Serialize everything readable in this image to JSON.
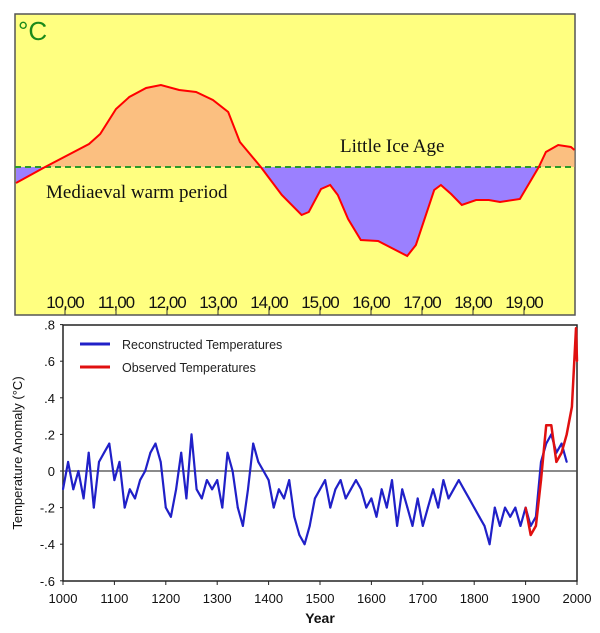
{
  "chart_data": [
    {
      "type": "area",
      "unit_label": "°C",
      "annotations": [
        "Little Ice Age",
        "Mediaeval warm period"
      ],
      "x_tick_labels": [
        "10,00",
        "11,00",
        "12,00",
        "13,00",
        "14,00",
        "15,00",
        "16,00",
        "17,00",
        "18,00",
        "19,00"
      ],
      "x_ticks": [
        1000,
        1100,
        1200,
        1300,
        1400,
        1500,
        1600,
        1700,
        1800,
        1900
      ],
      "xlim": [
        902,
        1992
      ],
      "ylim": [
        -1.0,
        1.5
      ],
      "baseline": 0,
      "y_unlabeled": true,
      "x": [
        904,
        961,
        1047,
        1069,
        1100,
        1126,
        1159,
        1188,
        1224,
        1257,
        1290,
        1320,
        1343,
        1384,
        1425,
        1464,
        1478,
        1502,
        1520,
        1535,
        1555,
        1580,
        1614,
        1671,
        1688,
        1724,
        1737,
        1757,
        1778,
        1806,
        1831,
        1853,
        1892,
        1929,
        1943,
        1967,
        1992,
        1999
      ],
      "y": [
        -0.16,
        0,
        0.23,
        0.33,
        0.58,
        0.7,
        0.79,
        0.82,
        0.77,
        0.75,
        0.67,
        0.55,
        0.25,
        0,
        -0.28,
        -0.48,
        -0.45,
        -0.22,
        -0.18,
        -0.28,
        -0.52,
        -0.73,
        -0.74,
        -0.89,
        -0.78,
        -0.23,
        -0.18,
        -0.27,
        -0.38,
        -0.33,
        -0.33,
        -0.35,
        -0.32,
        0,
        0.15,
        0.22,
        0.2,
        0.17
      ],
      "colors": {
        "background": "#ffff80",
        "warm_fill": "#fbbf80",
        "cold_fill": "#9b80ff",
        "line": "#ff0000",
        "baseline": "#2a9a2a",
        "unit": "#1a8a1a"
      }
    },
    {
      "type": "line",
      "ylabel": "Temperature Anomaly (°C)",
      "xlabel": "Year",
      "xlim": [
        1000,
        2000
      ],
      "ylim": [
        -0.6,
        0.8
      ],
      "x_tick_labels": [
        "1000",
        "1100",
        "1200",
        "1300",
        "1400",
        "1500",
        "1600",
        "1700",
        "1800",
        "1900",
        "2000"
      ],
      "y_ticks": [
        -0.6,
        -0.4,
        -0.2,
        0,
        0.2,
        0.4,
        0.6,
        0.8
      ],
      "y_tick_labels": [
        "-.6",
        "-.4",
        "-.2",
        "0",
        ".2",
        ".4",
        ".6",
        ".8"
      ],
      "legend_position": "top-left",
      "series": [
        {
          "name": "Reconstructed Temperatures",
          "color": "#2020c8",
          "x": [
            1000,
            1010,
            1020,
            1030,
            1040,
            1050,
            1060,
            1070,
            1080,
            1090,
            1100,
            1110,
            1120,
            1130,
            1140,
            1150,
            1160,
            1170,
            1180,
            1190,
            1200,
            1210,
            1220,
            1230,
            1240,
            1250,
            1260,
            1270,
            1280,
            1290,
            1300,
            1310,
            1320,
            1330,
            1340,
            1350,
            1360,
            1370,
            1380,
            1390,
            1400,
            1410,
            1420,
            1430,
            1440,
            1450,
            1460,
            1470,
            1480,
            1490,
            1500,
            1510,
            1520,
            1530,
            1540,
            1550,
            1560,
            1570,
            1580,
            1590,
            1600,
            1610,
            1620,
            1630,
            1640,
            1650,
            1660,
            1670,
            1680,
            1690,
            1700,
            1710,
            1720,
            1730,
            1740,
            1750,
            1760,
            1770,
            1780,
            1790,
            1800,
            1810,
            1820,
            1830,
            1840,
            1850,
            1860,
            1870,
            1880,
            1890,
            1900,
            1910,
            1920,
            1930,
            1940,
            1950,
            1960,
            1970,
            1980
          ],
          "y": [
            -0.1,
            0.05,
            -0.1,
            0,
            -0.15,
            0.1,
            -0.2,
            0.05,
            0.1,
            0.15,
            -0.05,
            0.05,
            -0.2,
            -0.1,
            -0.15,
            -0.05,
            0,
            0.1,
            0.15,
            0.05,
            -0.2,
            -0.25,
            -0.1,
            0.1,
            -0.15,
            0.2,
            -0.1,
            -0.15,
            -0.05,
            -0.1,
            -0.05,
            -0.2,
            0.1,
            0,
            -0.2,
            -0.3,
            -0.1,
            0.15,
            0.05,
            0,
            -0.05,
            -0.2,
            -0.1,
            -0.15,
            -0.05,
            -0.25,
            -0.35,
            -0.4,
            -0.3,
            -0.15,
            -0.1,
            -0.05,
            -0.2,
            -0.1,
            -0.05,
            -0.15,
            -0.1,
            -0.05,
            -0.1,
            -0.2,
            -0.15,
            -0.25,
            -0.1,
            -0.2,
            -0.05,
            -0.3,
            -0.1,
            -0.2,
            -0.3,
            -0.15,
            -0.3,
            -0.2,
            -0.1,
            -0.2,
            -0.05,
            -0.15,
            -0.1,
            -0.05,
            -0.1,
            -0.15,
            -0.2,
            -0.25,
            -0.3,
            -0.4,
            -0.2,
            -0.3,
            -0.2,
            -0.25,
            -0.2,
            -0.3,
            -0.2,
            -0.3,
            -0.25,
            0.05,
            0.15,
            0.2,
            0.1,
            0.15,
            0.05
          ]
        },
        {
          "name": "Observed Temperatures",
          "color": "#e01010",
          "x": [
            1900,
            1910,
            1920,
            1930,
            1940,
            1950,
            1960,
            1970,
            1980,
            1990,
            1998,
            2000
          ],
          "y": [
            -0.2,
            -0.35,
            -0.3,
            -0.05,
            0.25,
            0.25,
            0.05,
            0.1,
            0.2,
            0.35,
            0.78,
            0.6
          ]
        }
      ]
    }
  ]
}
